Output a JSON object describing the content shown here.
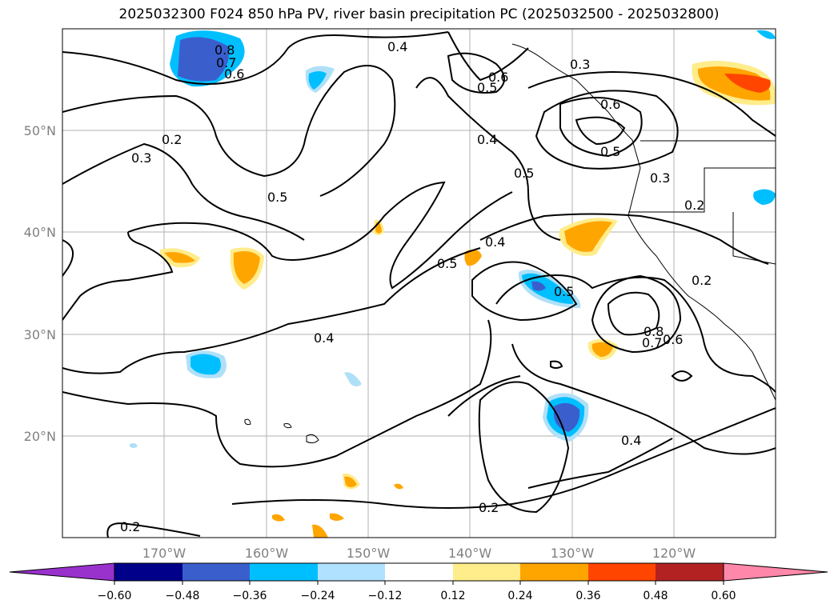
{
  "title": "2025032300 F024 850 hPa PV, river basin precipitation PC (2025032500 - 2025032800)",
  "map": {
    "lat_labels": [
      "50°N",
      "40°N",
      "30°N",
      "20°N"
    ],
    "lon_labels": [
      "170°W",
      "160°W",
      "150°W",
      "140°W",
      "130°W",
      "120°W"
    ],
    "contour_labels": [
      "0.8",
      "0.7",
      "0.6",
      "0.4",
      "0.3",
      "0.6",
      "0.5",
      "0.6",
      "0.2",
      "0.3",
      "0.4",
      "0.5",
      "0.5",
      "0.3",
      "0.2",
      "0.5",
      "0.4",
      "0.5",
      "0.4",
      "0.5",
      "0.2",
      "0.8",
      "0.7",
      "0.6",
      "0.4",
      "0.2",
      "0.2"
    ],
    "fill_colors": {
      "light_blue": "#b0e0f8",
      "blue": "#00bfff",
      "dark_blue": "#3a5fcd",
      "yellow": "#ffec8b",
      "orange": "#ffa500",
      "red_orange": "#ff4500"
    }
  },
  "colorbar": {
    "ticks": [
      "−0.60",
      "−0.48",
      "−0.36",
      "−0.24",
      "−0.12",
      "0.12",
      "0.24",
      "0.36",
      "0.48",
      "0.60"
    ],
    "colors": [
      "#9932cc",
      "#00008b",
      "#3a5fcd",
      "#00bfff",
      "#b0e2ff",
      "#ffffff",
      "#ffec8b",
      "#ffa500",
      "#ff4500",
      "#b22222",
      "#ff88aa"
    ]
  }
}
